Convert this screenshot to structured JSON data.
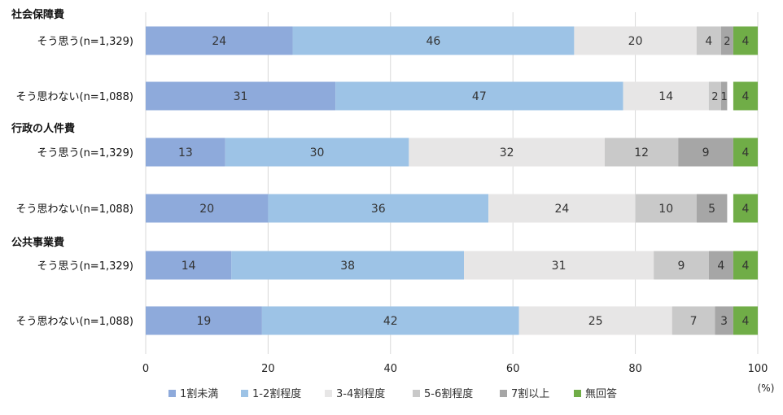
{
  "chart_data": {
    "type": "bar",
    "orientation": "horizontal",
    "stacked": true,
    "unit_label": "(%)",
    "xlim": [
      0,
      100
    ],
    "x_ticks": [
      "0",
      "20",
      "40",
      "60",
      "80",
      "100"
    ],
    "grid": "vertical",
    "legend_position": "bottom",
    "groups": [
      {
        "category": "社会保障費",
        "rows": [
          {
            "label": "そう思う(n=1,329)",
            "values": [
              24,
              46,
              20,
              4,
              2,
              4
            ]
          },
          {
            "label": "そう思わない(n=1,088)",
            "values": [
              31,
              47,
              14,
              2,
              1,
              4
            ]
          }
        ]
      },
      {
        "category": "行政の人件費",
        "rows": [
          {
            "label": "そう思う(n=1,329)",
            "values": [
              13,
              30,
              32,
              12,
              9,
              4
            ]
          },
          {
            "label": "そう思わない(n=1,088)",
            "values": [
              20,
              36,
              24,
              10,
              5,
              4
            ]
          }
        ]
      },
      {
        "category": "公共事業費",
        "rows": [
          {
            "label": "そう思う(n=1,329)",
            "values": [
              14,
              38,
              31,
              9,
              4,
              4
            ]
          },
          {
            "label": "そう思わない(n=1,088)",
            "values": [
              19,
              42,
              25,
              7,
              3,
              4
            ]
          }
        ]
      }
    ],
    "series": [
      {
        "name": "1割未満",
        "color": "#8eaadb"
      },
      {
        "name": "1-2割程度",
        "color": "#9dc3e6"
      },
      {
        "name": "3-4割程度",
        "color": "#e7e6e6"
      },
      {
        "name": "5-6割程度",
        "color": "#c9c9c9"
      },
      {
        "name": "7割以上",
        "color": "#a6a6a6"
      },
      {
        "name": "無回答",
        "color": "#70ad47"
      }
    ]
  }
}
